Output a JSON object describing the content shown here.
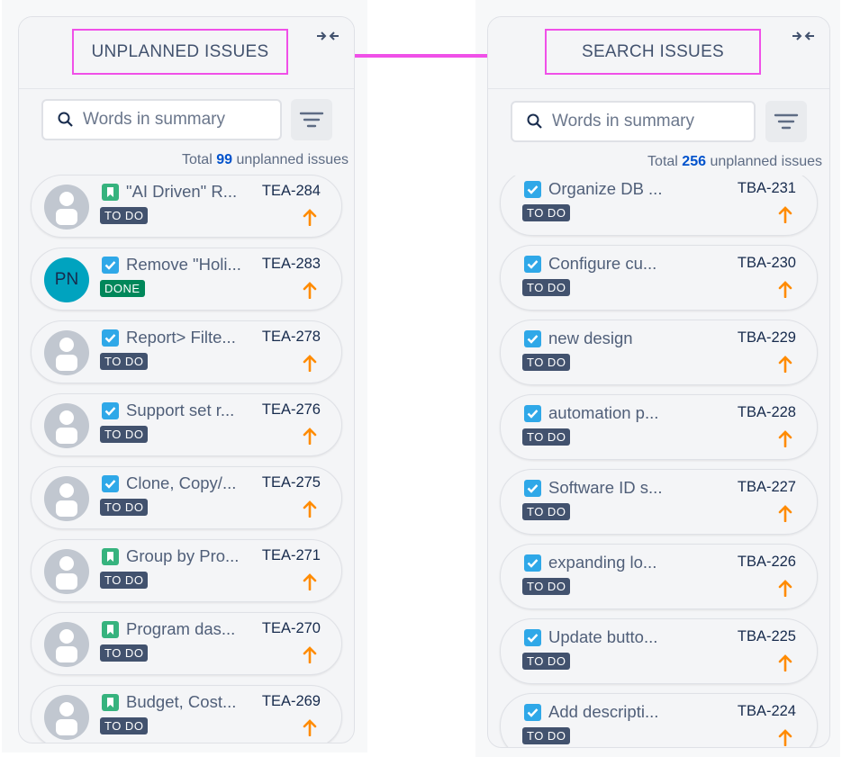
{
  "panels": [
    {
      "title": "UNPLANNED ISSUES",
      "search_placeholder": "Words in summary",
      "total": {
        "prefix": "Total",
        "count": 99,
        "suffix": "unplanned issues"
      },
      "issues": [
        {
          "summary": "\"AI Driven\" R...",
          "key": "TEA-284",
          "status": "TO DO",
          "type": "story"
        },
        {
          "summary": "Remove \"Holi...",
          "key": "TEA-283",
          "status": "DONE",
          "type": "task",
          "avatar": "PN"
        },
        {
          "summary": "Report> Filte...",
          "key": "TEA-278",
          "status": "TO DO",
          "type": "task"
        },
        {
          "summary": "Support set r...",
          "key": "TEA-276",
          "status": "TO DO",
          "type": "task"
        },
        {
          "summary": "Clone, Copy/...",
          "key": "TEA-275",
          "status": "TO DO",
          "type": "task"
        },
        {
          "summary": "Group by Pro...",
          "key": "TEA-271",
          "status": "TO DO",
          "type": "story"
        },
        {
          "summary": "Program das...",
          "key": "TEA-270",
          "status": "TO DO",
          "type": "story"
        },
        {
          "summary": "Budget, Cost...",
          "key": "TEA-269",
          "status": "TO DO",
          "type": "story"
        }
      ]
    },
    {
      "title": "SEARCH ISSUES",
      "search_placeholder": "Words in summary",
      "total": {
        "prefix": "Total",
        "count": 256,
        "suffix": "unplanned issues"
      },
      "issues": [
        {
          "summary": "Organize DB ...",
          "key": "TBA-231",
          "status": "TO DO",
          "type": "task"
        },
        {
          "summary": "Configure cu...",
          "key": "TBA-230",
          "status": "TO DO",
          "type": "task"
        },
        {
          "summary": "new design",
          "key": "TBA-229",
          "status": "TO DO",
          "type": "task"
        },
        {
          "summary": "automation p...",
          "key": "TBA-228",
          "status": "TO DO",
          "type": "task"
        },
        {
          "summary": "Software ID s...",
          "key": "TBA-227",
          "status": "TO DO",
          "type": "task"
        },
        {
          "summary": "expanding lo...",
          "key": "TBA-226",
          "status": "TO DO",
          "type": "task"
        },
        {
          "summary": "Update butto...",
          "key": "TBA-225",
          "status": "TO DO",
          "type": "task"
        },
        {
          "summary": "Add descripti...",
          "key": "TBA-224",
          "status": "TO DO",
          "type": "task"
        }
      ]
    }
  ]
}
